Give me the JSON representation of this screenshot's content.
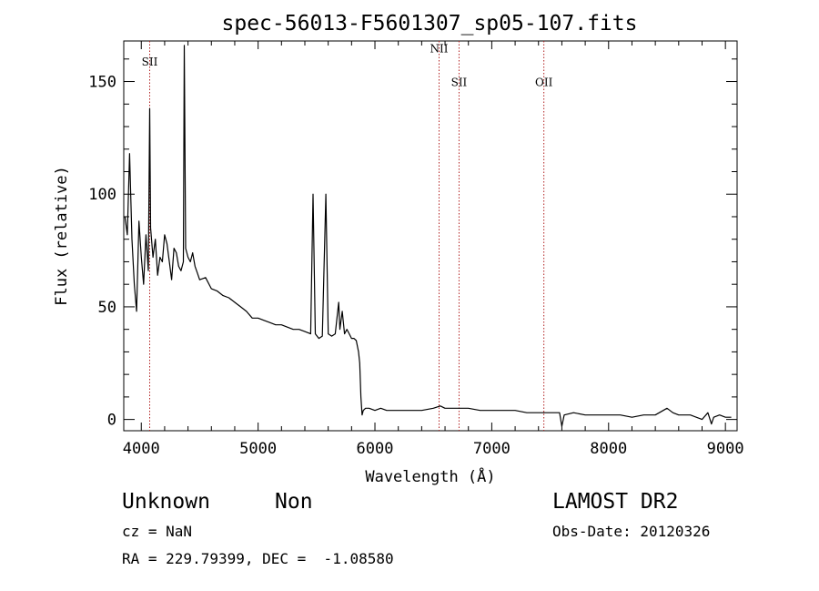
{
  "chart_data": {
    "type": "line",
    "title": "spec-56013-F5601307_sp05-107.fits",
    "xlabel": "Wavelength (Å)",
    "ylabel": "Flux (relative)",
    "xlim": [
      3850,
      9100
    ],
    "ylim": [
      -5,
      168
    ],
    "x_ticks": [
      4000,
      5000,
      6000,
      7000,
      8000,
      9000
    ],
    "x_tick_labels": [
      "4000",
      "5000",
      "6000",
      "7000",
      "8000",
      "9000"
    ],
    "y_ticks": [
      0,
      50,
      100,
      150
    ],
    "y_tick_labels": [
      "0",
      "50",
      "100",
      "150"
    ],
    "grid": false,
    "line_color": "#000000",
    "marker_color": "#b22222",
    "spectral_lines": [
      {
        "label": "SII",
        "wavelength": 4072,
        "label_flux": 157
      },
      {
        "label": "NII",
        "wavelength": 6549,
        "label_flux": 163
      },
      {
        "label": "SII",
        "wavelength": 6720,
        "label_flux": 148
      },
      {
        "label": "OII",
        "wavelength": 7446,
        "label_flux": 148
      }
    ],
    "series": [
      {
        "x": [
          3860,
          3880,
          3900,
          3920,
          3940,
          3960,
          3980,
          4000,
          4020,
          4040,
          4060,
          4072,
          4080,
          4100,
          4120,
          4140,
          4160,
          4180,
          4200,
          4220,
          4240,
          4260,
          4280,
          4300,
          4320,
          4340,
          4360,
          4368,
          4380,
          4400,
          4420,
          4440,
          4460,
          4480,
          4500,
          4550,
          4600,
          4650,
          4700,
          4750,
          4800,
          4850,
          4900,
          4950,
          5000,
          5050,
          5100,
          5150,
          5200,
          5250,
          5300,
          5350,
          5400,
          5450,
          5470,
          5490,
          5520,
          5550,
          5580,
          5600,
          5630,
          5660,
          5690,
          5700,
          5720,
          5740,
          5760,
          5780,
          5800,
          5820,
          5840,
          5860,
          5870,
          5880,
          5890,
          5900,
          5920,
          5950,
          6000,
          6050,
          6100,
          6200,
          6300,
          6400,
          6500,
          6560,
          6600,
          6700,
          6800,
          6900,
          7000,
          7100,
          7200,
          7300,
          7400,
          7500,
          7580,
          7600,
          7620,
          7700,
          7800,
          7900,
          8000,
          8100,
          8200,
          8300,
          8400,
          8500,
          8550,
          8600,
          8700,
          8800,
          8850,
          8880,
          8900,
          8950,
          9000,
          9050
        ],
        "y": [
          90,
          82,
          118,
          80,
          60,
          48,
          88,
          72,
          60,
          82,
          66,
          138,
          85,
          72,
          80,
          64,
          72,
          70,
          82,
          78,
          70,
          62,
          76,
          74,
          68,
          66,
          70,
          166,
          76,
          72,
          70,
          74,
          68,
          65,
          62,
          63,
          58,
          57,
          55,
          54,
          52,
          50,
          48,
          45,
          45,
          44,
          43,
          42,
          42,
          41,
          40,
          40,
          39,
          38,
          100,
          38,
          36,
          37,
          100,
          38,
          37,
          38,
          52,
          40,
          48,
          38,
          40,
          38,
          36,
          36,
          35,
          30,
          25,
          10,
          2,
          4,
          5,
          5,
          4,
          5,
          4,
          4,
          4,
          4,
          5,
          6,
          5,
          5,
          5,
          4,
          4,
          4,
          4,
          3,
          3,
          3,
          3,
          -3,
          2,
          3,
          2,
          2,
          2,
          2,
          1,
          2,
          2,
          5,
          3,
          2,
          2,
          0,
          3,
          -2,
          1,
          2,
          1,
          1
        ]
      }
    ]
  },
  "info": {
    "object_class": "Unknown",
    "object_subclass": "Non",
    "survey": "LAMOST DR2",
    "cz": "cz = NaN",
    "obs_date": "Obs-Date: 20120326",
    "ra_dec": "RA = 229.79399, DEC =  -1.08580"
  }
}
